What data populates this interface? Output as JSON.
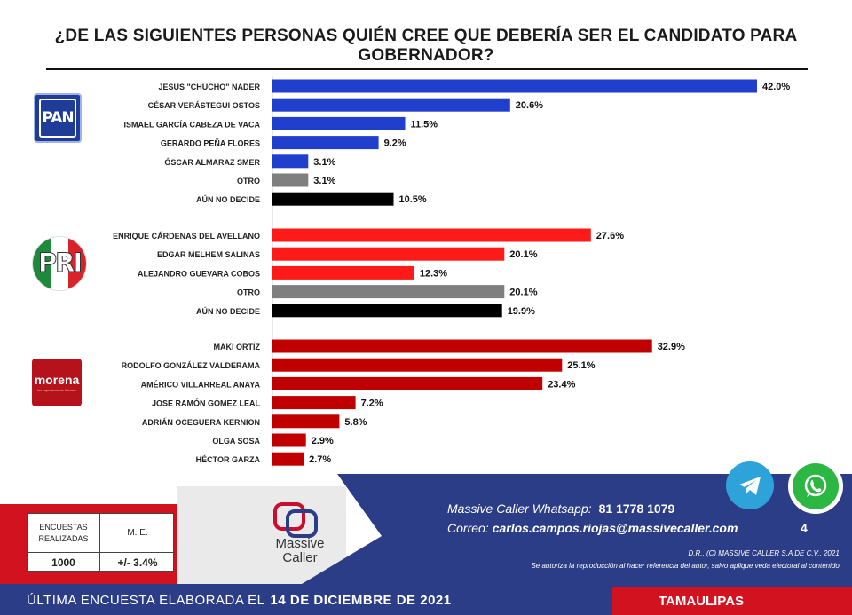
{
  "title": "¿DE LAS SIGUIENTES PERSONAS QUIÉN CREE QUE DEBERÍA SER EL CANDIDATO PARA GOBERNADOR?",
  "logos": {
    "pan": "PAN",
    "pri": "PRI",
    "morena": "morena",
    "morena_sub": "La esperanza de México"
  },
  "chart_data": {
    "type": "bar",
    "orientation": "horizontal",
    "unit": "%",
    "groups": [
      {
        "party": "PAN",
        "color": "#1f3fcc",
        "categories": [
          "JESÚS \"CHUCHO\" NADER",
          "CÉSAR VERÁSTEGUI OSTOS",
          "ISMAEL GARCÍA CABEZA DE VACA",
          "GERARDO PEÑA FLORES",
          "ÓSCAR ALMARAZ SMER",
          "OTRO",
          "AÚN NO DECIDE"
        ],
        "values": [
          42.0,
          20.6,
          11.5,
          9.2,
          3.1,
          3.1,
          10.5
        ],
        "labels": [
          "42.0%",
          "20.6%",
          "11.5%",
          "9.2%",
          "3.1%",
          "3.1%",
          "10.5%"
        ]
      },
      {
        "party": "PRI",
        "color": "#ff1a1a",
        "categories": [
          "ENRIQUE CÁRDENAS DEL AVELLANO",
          "EDGAR MELHEM SALINAS",
          "ALEJANDRO GUEVARA COBOS",
          "OTRO",
          "AÚN NO DECIDE"
        ],
        "values": [
          27.6,
          20.1,
          12.3,
          20.1,
          19.9
        ],
        "labels": [
          "27.6%",
          "20.1%",
          "12.3%",
          "20.1%",
          "19.9%"
        ]
      },
      {
        "party": "MORENA",
        "color": "#c00000",
        "categories": [
          "MAKI ORTÍZ",
          "RODOLFO GONZÁLEZ VALDERAMA",
          "AMÉRICO VILLARREAL ANAYA",
          "JOSE RAMÓN GOMEZ LEAL",
          "ADRIÁN OCEGUERA KERNION",
          "OLGA SOSA",
          "HÉCTOR GARZA"
        ],
        "values": [
          32.9,
          25.1,
          23.4,
          7.2,
          5.8,
          2.9,
          2.7
        ],
        "labels": [
          "32.9%",
          "25.1%",
          "23.4%",
          "7.2%",
          "5.8%",
          "2.9%",
          "2.7%"
        ]
      }
    ],
    "special_colors": {
      "OTRO": "#7f7f7f",
      "AÚN NO DECIDE": "#000000"
    }
  },
  "footer": {
    "stats": {
      "encuestas_label": "ENCUESTAS REALIZADAS",
      "me_label": "M. E.",
      "encuestas_value": "1000",
      "me_value": "+/- 3.4%"
    },
    "brand_line1": "Massive",
    "brand_line2": "Caller",
    "whatsapp_label": "Massive Caller Whatsapp:",
    "whatsapp_number": "81 1778 1079",
    "email_label": "Correo:",
    "email": "carlos.campos.riojas@massivecaller.com",
    "page_number": "4",
    "rights": "D.R., (C) MASSIVE CALLER S.A DE C.V., 2021.",
    "legal": "Se autoriza la reproducción al hacer referencia del autor, salvo aplique veda electoral al contenido.",
    "icons": [
      "telegram-icon",
      "whatsapp-icon"
    ]
  },
  "bottom_bar": {
    "label": "ÚLTIMA ENCUESTA ELABORADA EL",
    "date": "14 DE DICIEMBRE DE 2021",
    "state": "TAMAULIPAS"
  }
}
